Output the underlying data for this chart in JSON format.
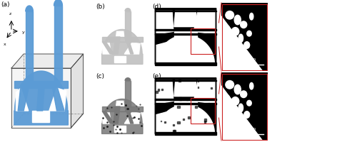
{
  "figure_width": 5.0,
  "figure_height": 2.0,
  "dpi": 100,
  "bg_color": "#ffffff",
  "labels": {
    "a": "(a)",
    "b": "(b)",
    "c": "(c)",
    "d": "(d)",
    "e": "(e)"
  },
  "label_fontsize": 6.5,
  "scale_bar_text": "3 mm",
  "scale_fontsize": 4.5,
  "blue_color": "#5b9bd5",
  "gray_3d": "#c0c0c0",
  "dark_3d": "#787878",
  "red_box_color": "#cc2222",
  "box_face": "#c8c8c8",
  "box_edge": "#444444"
}
